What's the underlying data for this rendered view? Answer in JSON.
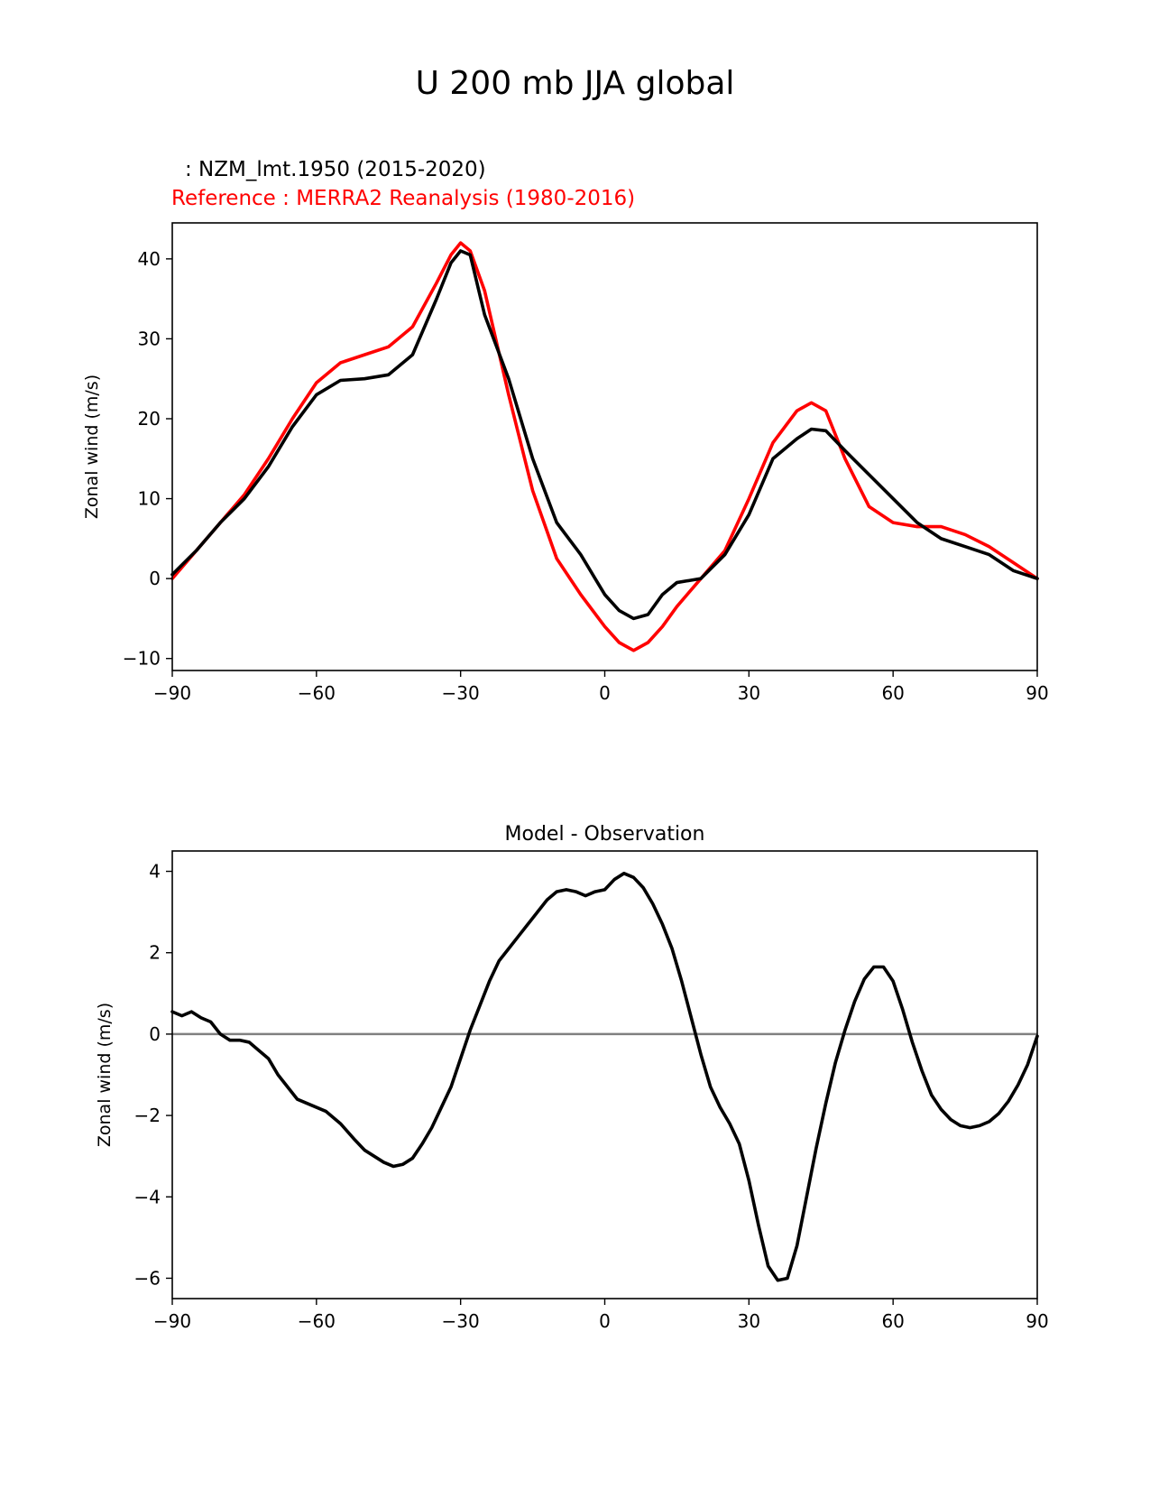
{
  "figure": {
    "suptitle": "U 200 mb JJA global",
    "test_label": ": NZM_lmt.1950 (2015-2020)",
    "ref_label": "Reference : MERRA2 Reanalysis (1980-2016)"
  },
  "chart_data": [
    {
      "type": "line",
      "title": "",
      "xlabel": "",
      "ylabel": "Zonal wind (m/s)",
      "xlim": [
        -90,
        90
      ],
      "ylim": [
        -11.5,
        44.5
      ],
      "xticks": [
        -90,
        -60,
        -30,
        0,
        30,
        60,
        90
      ],
      "yticks": [
        -10,
        0,
        10,
        20,
        30,
        40
      ],
      "xtick_labels": [
        "−90",
        "−60",
        "−30",
        "0",
        "30",
        "60",
        "90"
      ],
      "ytick_labels": [
        "−10",
        "0",
        "10",
        "20",
        "30",
        "40"
      ],
      "grid": false,
      "series": [
        {
          "color": "#ff0000",
          "x": [
            -90,
            -85,
            -80,
            -75,
            -70,
            -65,
            -60,
            -55,
            -50,
            -45,
            -40,
            -35,
            -32,
            -30,
            -28,
            -25,
            -20,
            -15,
            -10,
            -5,
            0,
            3,
            6,
            9,
            12,
            15,
            20,
            25,
            30,
            35,
            40,
            43,
            46,
            50,
            55,
            60,
            65,
            70,
            75,
            80,
            85,
            90
          ],
          "y": [
            0,
            3.5,
            7,
            10.5,
            15,
            20,
            24.5,
            27,
            28,
            29,
            31.5,
            37,
            40.5,
            42,
            41,
            36,
            23,
            11,
            2.5,
            -2,
            -6,
            -8,
            -9,
            -8,
            -6,
            -3.5,
            0,
            3.5,
            10,
            17,
            21,
            22,
            21,
            15,
            9,
            7,
            6.5,
            6.5,
            5.5,
            4,
            2,
            0
          ]
        },
        {
          "color": "#000000",
          "x": [
            -90,
            -85,
            -80,
            -75,
            -70,
            -65,
            -60,
            -55,
            -50,
            -45,
            -40,
            -35,
            -32,
            -30,
            -28,
            -25,
            -20,
            -15,
            -10,
            -5,
            -2,
            0,
            3,
            6,
            9,
            12,
            15,
            20,
            25,
            30,
            35,
            40,
            43,
            46,
            50,
            55,
            60,
            65,
            70,
            75,
            80,
            85,
            90
          ],
          "y": [
            0.5,
            3.5,
            7,
            10,
            14,
            19,
            23,
            24.8,
            25,
            25.5,
            28,
            35,
            39.5,
            41,
            40.5,
            33,
            25,
            15,
            7,
            3,
            0,
            -2,
            -4,
            -5,
            -4.5,
            -2,
            -0.5,
            0,
            3,
            8,
            15,
            17.5,
            18.7,
            18.5,
            16,
            13,
            10,
            7,
            5,
            4,
            3,
            1,
            0
          ]
        }
      ]
    },
    {
      "type": "line",
      "title": "Model - Observation",
      "xlabel": "",
      "ylabel": "Zonal wind (m/s)",
      "xlim": [
        -90,
        90
      ],
      "ylim": [
        -6.5,
        4.5
      ],
      "xticks": [
        -90,
        -60,
        -30,
        0,
        30,
        60,
        90
      ],
      "yticks": [
        -6,
        -4,
        -2,
        0,
        2,
        4
      ],
      "xtick_labels": [
        "−90",
        "−60",
        "−30",
        "0",
        "30",
        "60",
        "90"
      ],
      "ytick_labels": [
        "−6",
        "−4",
        "−2",
        "0",
        "2",
        "4"
      ],
      "grid": false,
      "zero_line_color": "#808080",
      "series": [
        {
          "color": "#000000",
          "x": [
            -90,
            -88,
            -86,
            -84,
            -82,
            -80,
            -78,
            -76,
            -74,
            -72,
            -70,
            -68,
            -66,
            -64,
            -62,
            -60,
            -58,
            -55,
            -52,
            -50,
            -48,
            -46,
            -44,
            -42,
            -40,
            -38,
            -36,
            -34,
            -32,
            -30,
            -28,
            -26,
            -24,
            -22,
            -20,
            -18,
            -16,
            -14,
            -12,
            -10,
            -8,
            -6,
            -4,
            -2,
            0,
            2,
            4,
            6,
            8,
            10,
            12,
            14,
            16,
            18,
            20,
            22,
            24,
            26,
            28,
            30,
            32,
            34,
            36,
            38,
            40,
            42,
            44,
            46,
            48,
            50,
            52,
            54,
            56,
            58,
            60,
            62,
            64,
            66,
            68,
            70,
            72,
            74,
            76,
            78,
            80,
            82,
            84,
            86,
            88,
            90
          ],
          "y": [
            0.55,
            0.45,
            0.55,
            0.4,
            0.3,
            0.0,
            -0.15,
            -0.15,
            -0.2,
            -0.4,
            -0.6,
            -1.0,
            -1.3,
            -1.6,
            -1.7,
            -1.8,
            -1.9,
            -2.2,
            -2.6,
            -2.85,
            -3.0,
            -3.15,
            -3.25,
            -3.2,
            -3.05,
            -2.7,
            -2.3,
            -1.8,
            -1.3,
            -0.6,
            0.1,
            0.7,
            1.3,
            1.8,
            2.1,
            2.4,
            2.7,
            3.0,
            3.3,
            3.5,
            3.55,
            3.5,
            3.4,
            3.5,
            3.55,
            3.8,
            3.95,
            3.85,
            3.6,
            3.2,
            2.7,
            2.1,
            1.3,
            0.4,
            -0.5,
            -1.3,
            -1.8,
            -2.2,
            -2.7,
            -3.6,
            -4.7,
            -5.7,
            -6.05,
            -6.0,
            -5.2,
            -4.0,
            -2.8,
            -1.7,
            -0.7,
            0.1,
            0.8,
            1.35,
            1.65,
            1.65,
            1.3,
            0.6,
            -0.2,
            -0.9,
            -1.5,
            -1.85,
            -2.1,
            -2.25,
            -2.3,
            -2.25,
            -2.15,
            -1.95,
            -1.65,
            -1.25,
            -0.75,
            -0.05
          ]
        }
      ]
    }
  ]
}
